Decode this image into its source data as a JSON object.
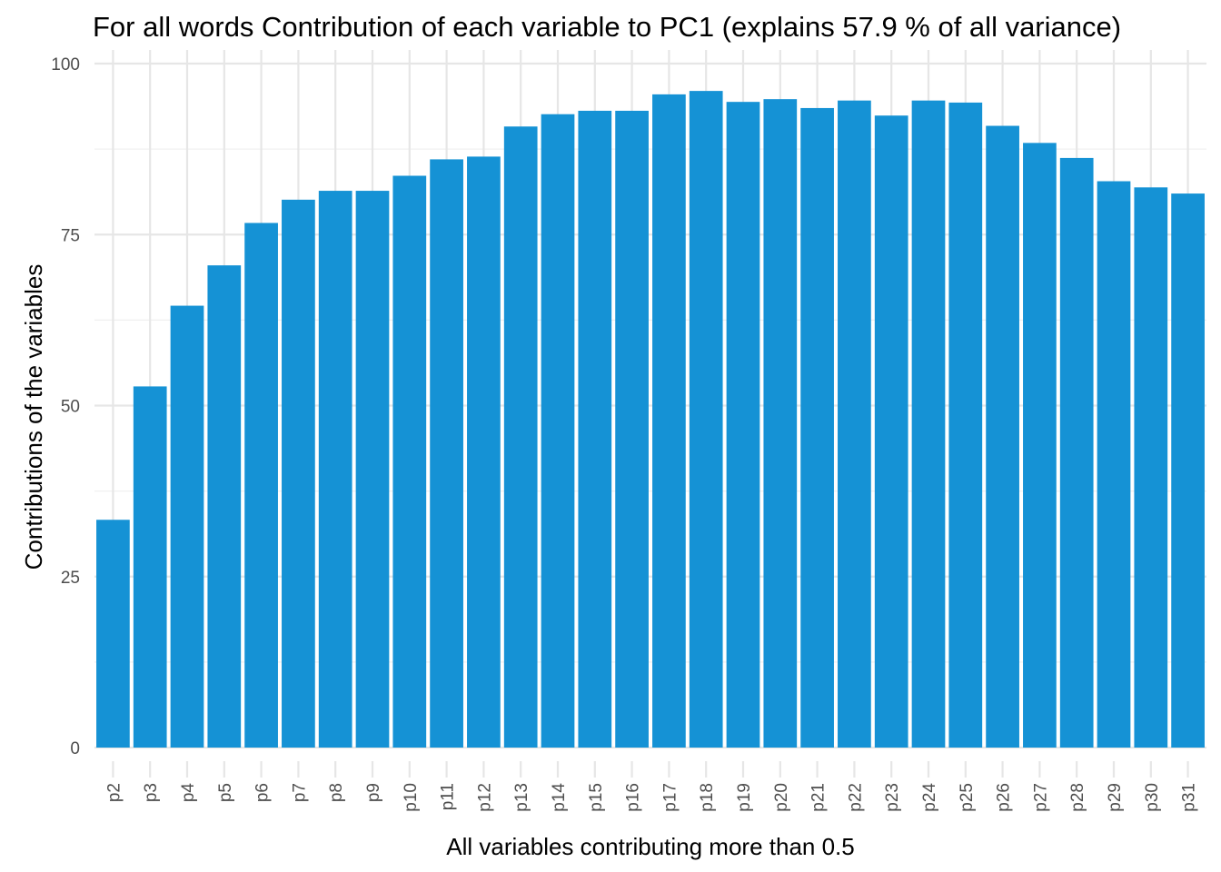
{
  "chart_data": {
    "type": "bar",
    "title": "For all words Contribution of each variable to PC1 (explains 57.9 % of all variance)",
    "xlabel": "All variables contributing more than 0.5",
    "ylabel": "Contributions of the variables",
    "categories": [
      "p2",
      "p3",
      "p4",
      "p5",
      "p6",
      "p7",
      "p8",
      "p9",
      "p10",
      "p11",
      "p12",
      "p13",
      "p14",
      "p15",
      "p16",
      "p17",
      "p18",
      "p19",
      "p20",
      "p21",
      "p22",
      "p23",
      "p24",
      "p25",
      "p26",
      "p27",
      "p28",
      "p29",
      "p30",
      "p31"
    ],
    "values": [
      33.3,
      52.8,
      64.6,
      70.5,
      76.7,
      80.1,
      81.4,
      81.4,
      83.6,
      86.0,
      86.4,
      90.8,
      92.6,
      93.1,
      93.1,
      95.5,
      96.0,
      94.4,
      94.8,
      93.5,
      94.6,
      92.4,
      94.6,
      94.3,
      90.9,
      88.4,
      86.2,
      82.8,
      81.9,
      81.0
    ],
    "ylim": [
      0,
      100
    ],
    "yticks": [
      0,
      25,
      50,
      75,
      100
    ],
    "grid": true,
    "legend": "none",
    "bar_color": "#1592d5",
    "theme": "minimal"
  }
}
